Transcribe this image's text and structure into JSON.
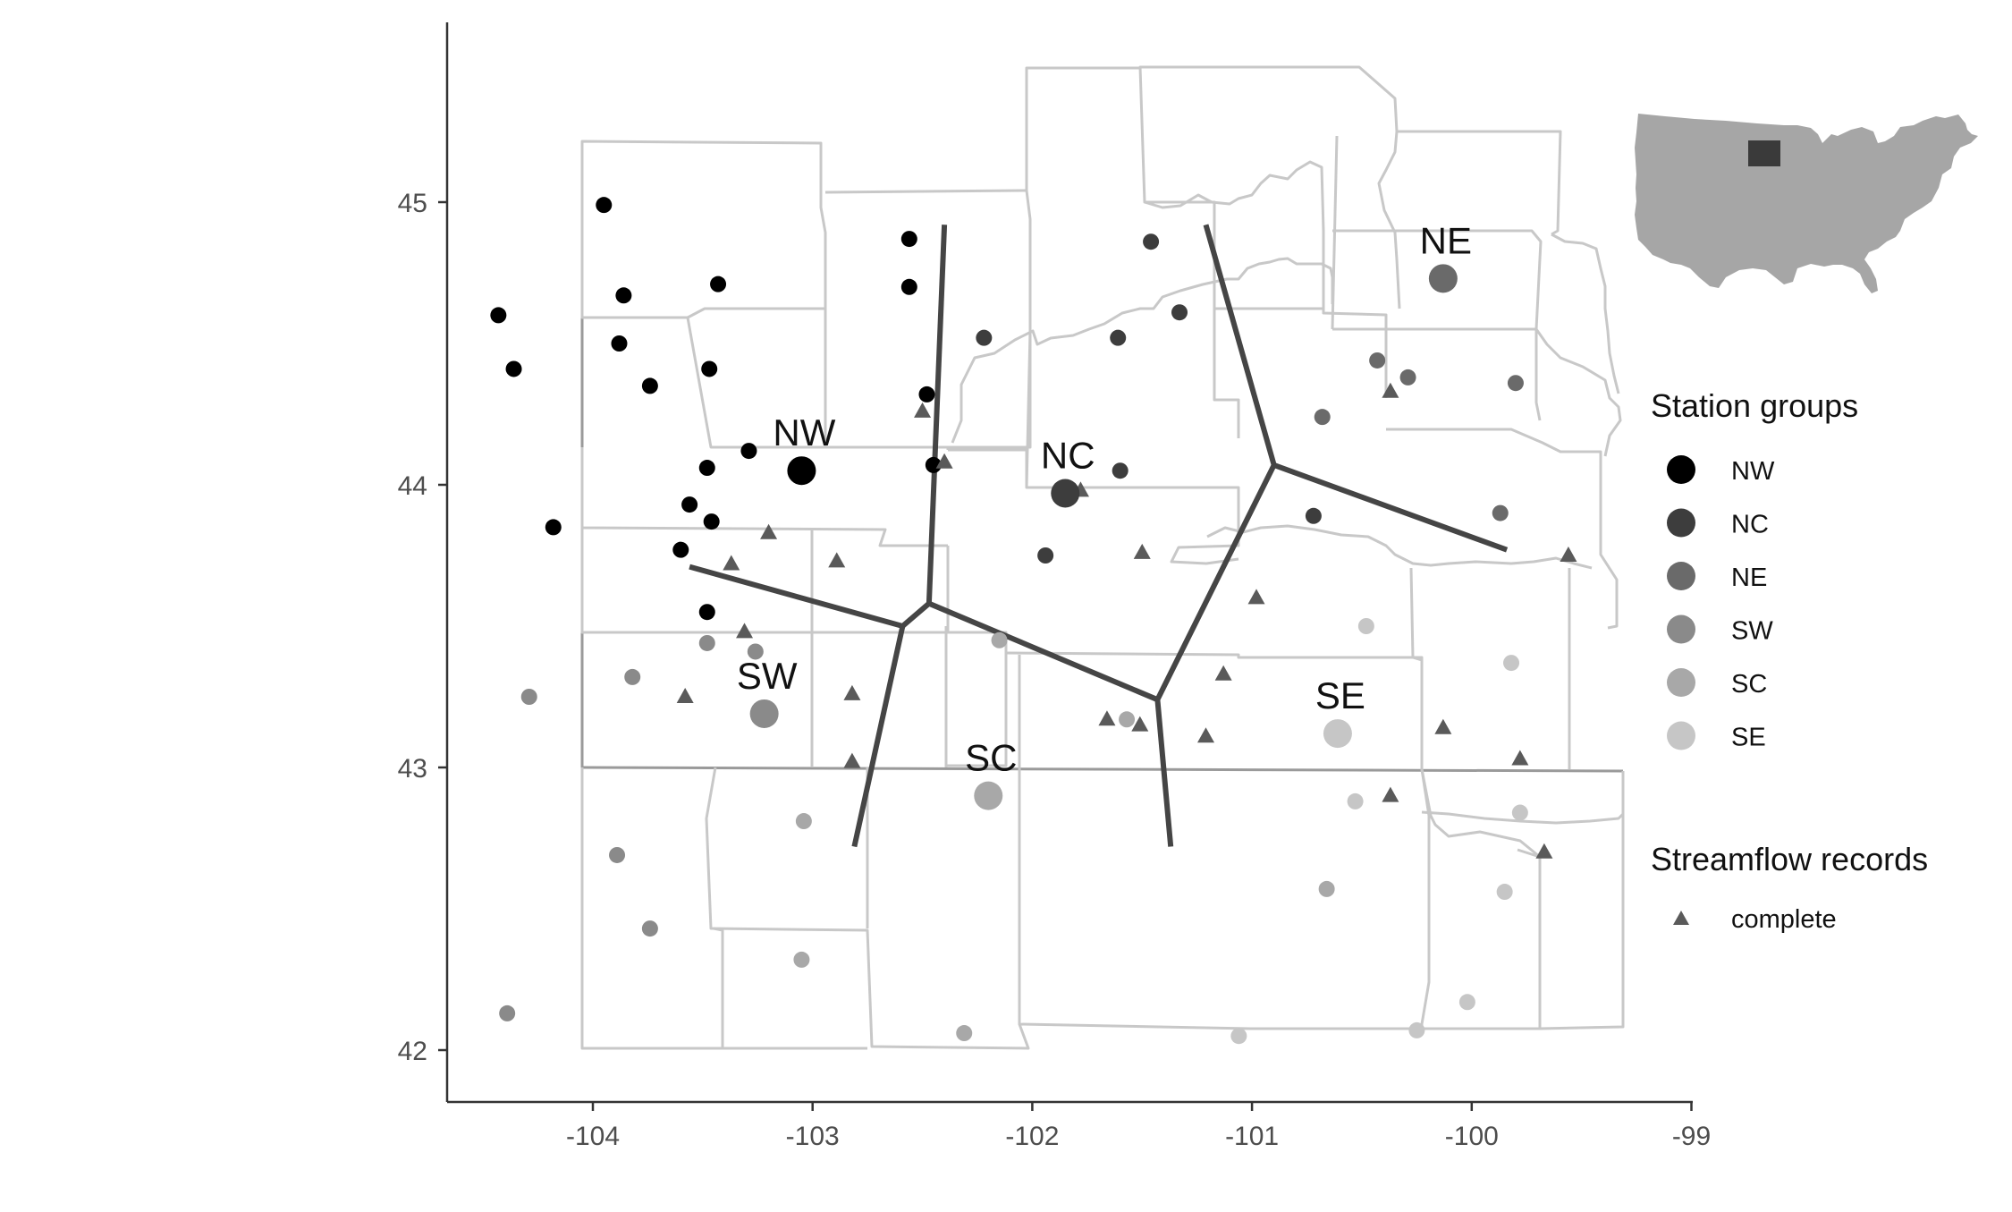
{
  "axes": {
    "x_ticks": [
      "-104",
      "-103",
      "-102",
      "-101",
      "-100",
      "-99"
    ],
    "y_ticks": [
      "45",
      "44",
      "43",
      "42"
    ],
    "xlim": [
      -104.7,
      -98.97
    ],
    "ylim": [
      41.83,
      45.63
    ]
  },
  "regions": [
    {
      "id": "NW",
      "label": "NW",
      "color": "#000000",
      "lon": -103.05,
      "lat": 44.05
    },
    {
      "id": "NC",
      "label": "NC",
      "color": "#3d3d3d",
      "lon": -101.85,
      "lat": 43.97
    },
    {
      "id": "NE",
      "label": "NE",
      "color": "#6a6a6a",
      "lon": -100.13,
      "lat": 44.73
    },
    {
      "id": "SW",
      "label": "SW",
      "color": "#8a8a8a",
      "lon": -103.22,
      "lat": 43.19
    },
    {
      "id": "SC",
      "label": "SC",
      "color": "#a8a8a8",
      "lon": -102.2,
      "lat": 42.9
    },
    {
      "id": "SE",
      "label": "SE",
      "color": "#c6c6c6",
      "lon": -100.61,
      "lat": 43.12
    }
  ],
  "stations": [
    {
      "group": "NW",
      "lon": -103.95,
      "lat": 44.99
    },
    {
      "group": "NW",
      "lon": -104.43,
      "lat": 44.6
    },
    {
      "group": "NW",
      "lon": -104.36,
      "lat": 44.41
    },
    {
      "group": "NW",
      "lon": -103.86,
      "lat": 44.67
    },
    {
      "group": "NW",
      "lon": -103.43,
      "lat": 44.71
    },
    {
      "group": "NW",
      "lon": -103.88,
      "lat": 44.5
    },
    {
      "group": "NW",
      "lon": -103.74,
      "lat": 44.35
    },
    {
      "group": "NW",
      "lon": -103.47,
      "lat": 44.41
    },
    {
      "group": "NW",
      "lon": -103.29,
      "lat": 44.12
    },
    {
      "group": "NW",
      "lon": -103.48,
      "lat": 44.06
    },
    {
      "group": "NW",
      "lon": -103.56,
      "lat": 43.93
    },
    {
      "group": "NW",
      "lon": -103.46,
      "lat": 43.87
    },
    {
      "group": "NW",
      "lon": -104.18,
      "lat": 43.85
    },
    {
      "group": "NW",
      "lon": -103.6,
      "lat": 43.77
    },
    {
      "group": "NW",
      "lon": -103.48,
      "lat": 43.55
    },
    {
      "group": "NW",
      "lon": -102.56,
      "lat": 44.87
    },
    {
      "group": "NW",
      "lon": -102.56,
      "lat": 44.7
    },
    {
      "group": "NW",
      "lon": -102.48,
      "lat": 44.32
    },
    {
      "group": "NW",
      "lon": -102.45,
      "lat": 44.07
    },
    {
      "group": "NC",
      "lon": -101.46,
      "lat": 44.86
    },
    {
      "group": "NC",
      "lon": -101.33,
      "lat": 44.61
    },
    {
      "group": "NC",
      "lon": -102.22,
      "lat": 44.52
    },
    {
      "group": "NC",
      "lon": -101.61,
      "lat": 44.52
    },
    {
      "group": "NC",
      "lon": -101.6,
      "lat": 44.05
    },
    {
      "group": "NC",
      "lon": -101.94,
      "lat": 43.75
    },
    {
      "group": "NC",
      "lon": -100.72,
      "lat": 43.89
    },
    {
      "group": "NE",
      "lon": -100.43,
      "lat": 44.44
    },
    {
      "group": "NE",
      "lon": -100.29,
      "lat": 44.38
    },
    {
      "group": "NE",
      "lon": -99.8,
      "lat": 44.36
    },
    {
      "group": "NE",
      "lon": -100.68,
      "lat": 44.24
    },
    {
      "group": "NE",
      "lon": -99.87,
      "lat": 43.9
    },
    {
      "group": "SW",
      "lon": -103.48,
      "lat": 43.44
    },
    {
      "group": "SW",
      "lon": -103.26,
      "lat": 43.41
    },
    {
      "group": "SW",
      "lon": -103.82,
      "lat": 43.32
    },
    {
      "group": "SW",
      "lon": -104.29,
      "lat": 43.25
    },
    {
      "group": "SW",
      "lon": -103.89,
      "lat": 42.69
    },
    {
      "group": "SW",
      "lon": -103.74,
      "lat": 42.43
    },
    {
      "group": "SW",
      "lon": -104.39,
      "lat": 42.13
    },
    {
      "group": "SC",
      "lon": -102.15,
      "lat": 43.45
    },
    {
      "group": "SC",
      "lon": -101.57,
      "lat": 43.17
    },
    {
      "group": "SC",
      "lon": -103.04,
      "lat": 42.81
    },
    {
      "group": "SC",
      "lon": -103.05,
      "lat": 42.32
    },
    {
      "group": "SC",
      "lon": -102.31,
      "lat": 42.06
    },
    {
      "group": "SC",
      "lon": -100.66,
      "lat": 42.57
    },
    {
      "group": "SE",
      "lon": -100.48,
      "lat": 43.5
    },
    {
      "group": "SE",
      "lon": -99.82,
      "lat": 43.37
    },
    {
      "group": "SE",
      "lon": -100.53,
      "lat": 42.88
    },
    {
      "group": "SE",
      "lon": -99.78,
      "lat": 42.84
    },
    {
      "group": "SE",
      "lon": -99.85,
      "lat": 42.56
    },
    {
      "group": "SE",
      "lon": -100.02,
      "lat": 42.17
    },
    {
      "group": "SE",
      "lon": -100.25,
      "lat": 42.07
    },
    {
      "group": "SE",
      "lon": -101.06,
      "lat": 42.05
    }
  ],
  "complete_records": [
    {
      "lon": -102.5,
      "lat": 44.26
    },
    {
      "lon": -102.4,
      "lat": 44.08
    },
    {
      "lon": -101.78,
      "lat": 43.98
    },
    {
      "lon": -101.5,
      "lat": 43.76
    },
    {
      "lon": -103.2,
      "lat": 43.83
    },
    {
      "lon": -103.37,
      "lat": 43.72
    },
    {
      "lon": -102.89,
      "lat": 43.73
    },
    {
      "lon": -103.31,
      "lat": 43.48
    },
    {
      "lon": -103.58,
      "lat": 43.25
    },
    {
      "lon": -102.82,
      "lat": 43.26
    },
    {
      "lon": -102.82,
      "lat": 43.02
    },
    {
      "lon": -101.66,
      "lat": 43.17
    },
    {
      "lon": -101.51,
      "lat": 43.15
    },
    {
      "lon": -101.21,
      "lat": 43.11
    },
    {
      "lon": -100.98,
      "lat": 43.6
    },
    {
      "lon": -101.13,
      "lat": 43.33
    },
    {
      "lon": -100.37,
      "lat": 44.33
    },
    {
      "lon": -100.13,
      "lat": 43.14
    },
    {
      "lon": -99.78,
      "lat": 43.03
    },
    {
      "lon": -100.37,
      "lat": 42.9
    },
    {
      "lon": -99.67,
      "lat": 42.7
    },
    {
      "lon": -99.56,
      "lat": 43.75
    }
  ],
  "boundary_lines": [
    [
      [
        -103.56,
        43.71
      ],
      [
        -102.59,
        43.5
      ],
      [
        -102.47,
        43.58
      ],
      [
        -101.43,
        43.24
      ],
      [
        -100.9,
        44.07
      ],
      [
        -99.84,
        43.77
      ]
    ],
    [
      [
        -102.4,
        44.92
      ],
      [
        -102.47,
        43.58
      ]
    ],
    [
      [
        -102.59,
        43.5
      ],
      [
        -102.81,
        42.72
      ]
    ],
    [
      [
        -101.43,
        43.24
      ],
      [
        -101.37,
        42.72
      ]
    ],
    [
      [
        -100.9,
        44.07
      ],
      [
        -101.21,
        44.92
      ]
    ]
  ],
  "legend": {
    "groups_title": "Station groups",
    "groups": [
      "NW",
      "NC",
      "NE",
      "SW",
      "SC",
      "SE"
    ],
    "records_title": "Streamflow records",
    "records_label": "complete"
  },
  "inset": {
    "fill": "#a6a6a6",
    "highlight": "#3a3a3a"
  }
}
